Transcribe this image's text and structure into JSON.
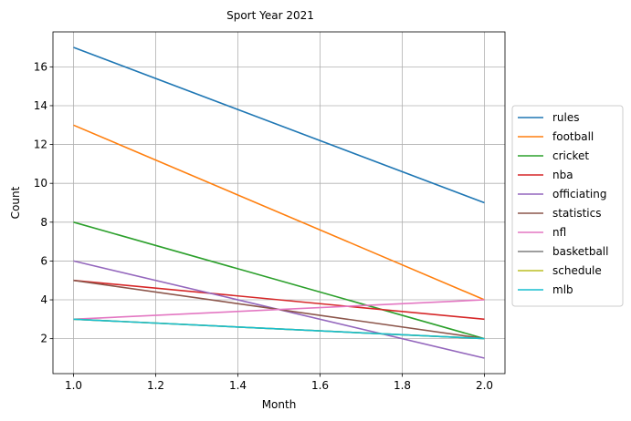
{
  "chart_data": {
    "type": "line",
    "title": "Sport Year 2021",
    "xlabel": "Month",
    "ylabel": "Count",
    "x": [
      1.0,
      2.0
    ],
    "xlim": [
      0.95,
      2.05
    ],
    "ylim": [
      0.2,
      17.8
    ],
    "xticks": [
      1.0,
      1.2,
      1.4,
      1.6,
      1.8,
      2.0
    ],
    "xtick_labels": [
      "1.0",
      "1.2",
      "1.4",
      "1.6",
      "1.8",
      "2.0"
    ],
    "yticks": [
      2,
      4,
      6,
      8,
      10,
      12,
      14,
      16
    ],
    "ytick_labels": [
      "2",
      "4",
      "6",
      "8",
      "10",
      "12",
      "14",
      "16"
    ],
    "grid": true,
    "legend_position": "right",
    "series": [
      {
        "name": "rules",
        "color": "#1f77b4",
        "values": [
          17,
          9
        ]
      },
      {
        "name": "football",
        "color": "#ff7f0e",
        "values": [
          13,
          4
        ]
      },
      {
        "name": "cricket",
        "color": "#2ca02c",
        "values": [
          8,
          2
        ]
      },
      {
        "name": "nba",
        "color": "#d62728",
        "values": [
          5,
          3
        ]
      },
      {
        "name": "officiating",
        "color": "#9467bd",
        "values": [
          6,
          1
        ]
      },
      {
        "name": "statistics",
        "color": "#8c564b",
        "values": [
          5,
          2
        ]
      },
      {
        "name": "nfl",
        "color": "#e377c2",
        "values": [
          3,
          4
        ]
      },
      {
        "name": "basketball",
        "color": "#7f7f7f",
        "values": [
          3,
          2
        ]
      },
      {
        "name": "schedule",
        "color": "#bcbd22",
        "values": [
          3,
          2
        ]
      },
      {
        "name": "mlb",
        "color": "#17becf",
        "values": [
          3,
          2
        ]
      }
    ]
  }
}
